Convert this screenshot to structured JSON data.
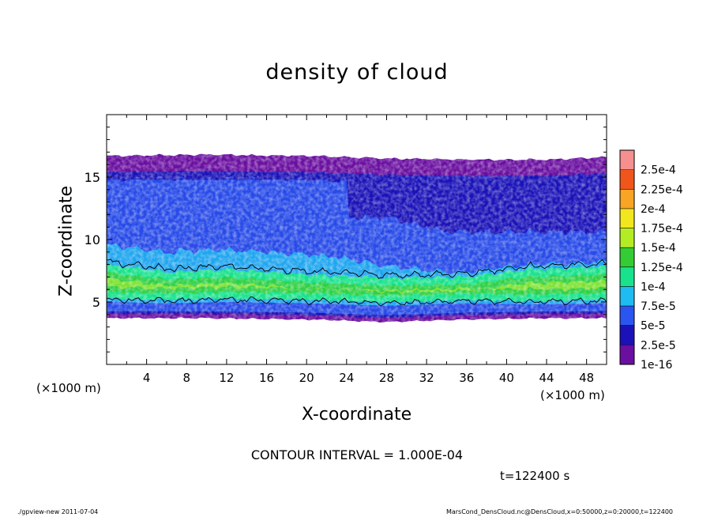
{
  "chart_data": {
    "type": "heatmap",
    "title": "density of cloud",
    "xlabel": "X-coordinate",
    "ylabel": "Z-coordinate",
    "x_unit_label": "(×1000 m)",
    "xlim": [
      0,
      50
    ],
    "ylim": [
      0,
      20
    ],
    "x_ticks": [
      4,
      8,
      12,
      16,
      20,
      24,
      28,
      32,
      36,
      40,
      44,
      48
    ],
    "y_ticks": [
      5,
      10,
      15
    ],
    "colorbar": {
      "labels": [
        "1e-16",
        "2.5e-5",
        "5e-5",
        "7.5e-5",
        "1e-4",
        "1.25e-4",
        "1.5e-4",
        "1.75e-4",
        "2e-4",
        "2.25e-4",
        "2.5e-4"
      ],
      "colors": [
        "#6a0fa0",
        "#1a12b8",
        "#2a55f0",
        "#1ebcf0",
        "#18e28c",
        "#34cc34",
        "#b4ec24",
        "#f2e61e",
        "#f8a424",
        "#f0561c",
        "#f69090"
      ]
    },
    "cloud_profile": [
      {
        "x": 0,
        "z_bottom": 3.7,
        "z_top": 16.7
      },
      {
        "x": 10,
        "z_bottom": 3.7,
        "z_top": 16.8
      },
      {
        "x": 20,
        "z_bottom": 3.6,
        "z_top": 16.7
      },
      {
        "x": 28,
        "z_bottom": 3.4,
        "z_top": 16.5
      },
      {
        "x": 36,
        "z_bottom": 3.6,
        "z_top": 16.4
      },
      {
        "x": 44,
        "z_bottom": 3.7,
        "z_top": 16.4
      },
      {
        "x": 50,
        "z_bottom": 3.7,
        "z_top": 16.6
      }
    ],
    "high_density_band": [
      {
        "x": 0,
        "z_low": 5.3,
        "z_high": 8.0
      },
      {
        "x": 6,
        "z_low": 5.2,
        "z_high": 7.4
      },
      {
        "x": 12,
        "z_low": 5.3,
        "z_high": 7.6
      },
      {
        "x": 20,
        "z_low": 5.2,
        "z_high": 7.2
      },
      {
        "x": 28,
        "z_low": 5.0,
        "z_high": 6.9
      },
      {
        "x": 36,
        "z_low": 5.2,
        "z_high": 7.0
      },
      {
        "x": 42,
        "z_low": 5.1,
        "z_high": 7.6
      },
      {
        "x": 50,
        "z_low": 5.2,
        "z_high": 7.8
      }
    ],
    "contour_interval": "CONTOUR INTERVAL = 1.000E-04",
    "time": "t=122400 s"
  },
  "footer": {
    "left": "./gpview-new   2011-07-04",
    "right": "MarsCond_DensCloud.nc@DensCloud,x=0:50000,z=0:20000,t=122400"
  }
}
